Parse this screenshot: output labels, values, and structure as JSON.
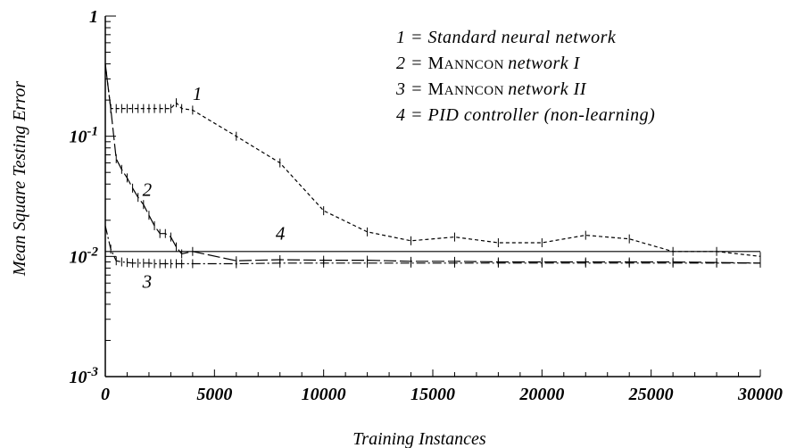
{
  "chart_data": {
    "type": "line",
    "title": "",
    "xlabel": "Training Instances",
    "ylabel": "Mean Square Testing Error",
    "xlim": [
      0,
      30000
    ],
    "ylim": [
      0.001,
      1
    ],
    "yscale": "log",
    "grid": false,
    "legend_position": "top-right",
    "x_ticks": [
      "0",
      "5000",
      "10000",
      "15000",
      "20000",
      "25000",
      "30000"
    ],
    "y_ticks": [
      {
        "value": 1,
        "base": "1",
        "exp": ""
      },
      {
        "value": 0.1,
        "base": "10",
        "exp": "-1"
      },
      {
        "value": 0.01,
        "base": "10",
        "exp": "-2"
      },
      {
        "value": 0.001,
        "base": "10",
        "exp": "-3"
      }
    ],
    "legend": [
      {
        "id": "1",
        "prefix": "1 = ",
        "label": "Standard neural network",
        "smallcaps": ""
      },
      {
        "id": "2",
        "prefix": "2 = ",
        "label": "network I",
        "smallcaps": "Manncon"
      },
      {
        "id": "3",
        "prefix": "3 = ",
        "label": "network II",
        "smallcaps": "Manncon"
      },
      {
        "id": "4",
        "prefix": "4 = ",
        "label": "PID controller (non-learning)",
        "smallcaps": ""
      }
    ],
    "series": [
      {
        "name": "1",
        "dash": "4,3",
        "label_at": [
          4000,
          0.2
        ],
        "x": [
          0,
          250,
          500,
          750,
          1000,
          1250,
          1500,
          1750,
          2000,
          2250,
          2500,
          2750,
          3000,
          3250,
          3500,
          4000,
          6000,
          8000,
          10000,
          12000,
          14000,
          16000,
          18000,
          20000,
          22000,
          24000,
          26000,
          28000,
          30000
        ],
        "y": [
          0.4,
          0.17,
          0.17,
          0.17,
          0.17,
          0.17,
          0.17,
          0.17,
          0.17,
          0.17,
          0.17,
          0.17,
          0.17,
          0.19,
          0.17,
          0.165,
          0.1,
          0.06,
          0.024,
          0.016,
          0.0135,
          0.0145,
          0.013,
          0.013,
          0.015,
          0.014,
          0.011,
          0.011,
          0.01
        ]
      },
      {
        "name": "2",
        "dash": "14,4",
        "label_at": [
          1700,
          0.032
        ],
        "x": [
          0,
          250,
          500,
          750,
          1000,
          1250,
          1500,
          1750,
          2000,
          2250,
          2500,
          2750,
          3000,
          3250,
          3500,
          4000,
          6000,
          8000,
          10000,
          12000,
          14000,
          16000,
          18000,
          20000,
          22000,
          24000,
          26000,
          28000,
          30000
        ],
        "y": [
          0.4,
          0.17,
          0.065,
          0.053,
          0.045,
          0.037,
          0.031,
          0.027,
          0.022,
          0.018,
          0.0155,
          0.0155,
          0.0145,
          0.012,
          0.0105,
          0.011,
          0.0092,
          0.0094,
          0.0093,
          0.0093,
          0.0091,
          0.0091,
          0.009,
          0.009,
          0.009,
          0.009,
          0.009,
          0.0089,
          0.0088
        ]
      },
      {
        "name": "3",
        "dash": "10,3,2,3",
        "label_at": [
          1700,
          0.0055
        ],
        "x": [
          0,
          250,
          500,
          750,
          1000,
          1250,
          1500,
          1750,
          2000,
          2250,
          2500,
          2750,
          3000,
          3250,
          3500,
          4000,
          6000,
          8000,
          10000,
          12000,
          14000,
          16000,
          18000,
          20000,
          22000,
          24000,
          26000,
          28000,
          30000
        ],
        "y": [
          0.018,
          0.0115,
          0.0092,
          0.009,
          0.0089,
          0.0088,
          0.0088,
          0.0088,
          0.0088,
          0.0087,
          0.0087,
          0.0087,
          0.0087,
          0.0087,
          0.0087,
          0.0087,
          0.0087,
          0.0088,
          0.0088,
          0.0088,
          0.0088,
          0.0088,
          0.0088,
          0.0088,
          0.0088,
          0.0088,
          0.0088,
          0.0088,
          0.0088
        ]
      },
      {
        "name": "4",
        "dash": "",
        "label_at": [
          7800,
          0.0138
        ],
        "x": [
          0,
          30000
        ],
        "y": [
          0.011,
          0.011
        ]
      }
    ]
  }
}
